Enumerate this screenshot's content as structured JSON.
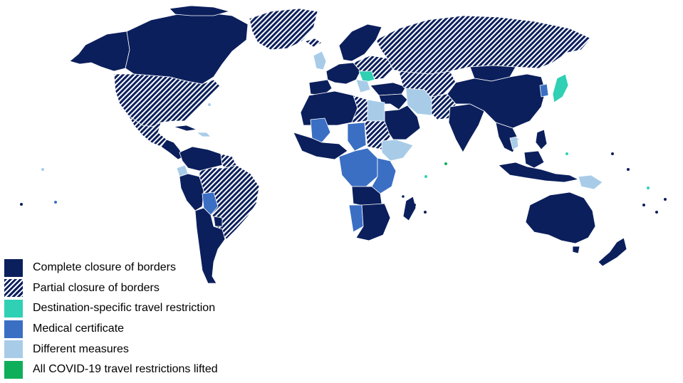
{
  "colors": {
    "complete": "#0b1f5c",
    "partial_stripe": "#0b1f5c",
    "partial_bg": "#ffffff",
    "destination": "#2fd0b4",
    "medical": "#3a6fc4",
    "different": "#a8cce8",
    "lifted": "#0fae5a",
    "border": "#ffffff"
  },
  "legend": {
    "items": [
      {
        "key": "complete",
        "label": "Complete closure of borders",
        "icon": "solid-navy-swatch"
      },
      {
        "key": "partial",
        "label": "Partial closure of borders",
        "icon": "striped-navy-swatch"
      },
      {
        "key": "destination",
        "label": "Destination-specific travel restriction",
        "icon": "teal-swatch"
      },
      {
        "key": "medical",
        "label": "Medical certificate",
        "icon": "blue-swatch"
      },
      {
        "key": "different",
        "label": "Different measures",
        "icon": "light-blue-swatch"
      },
      {
        "key": "lifted",
        "label": "All COVID-19 travel restrictions lifted",
        "icon": "green-swatch"
      }
    ]
  }
}
